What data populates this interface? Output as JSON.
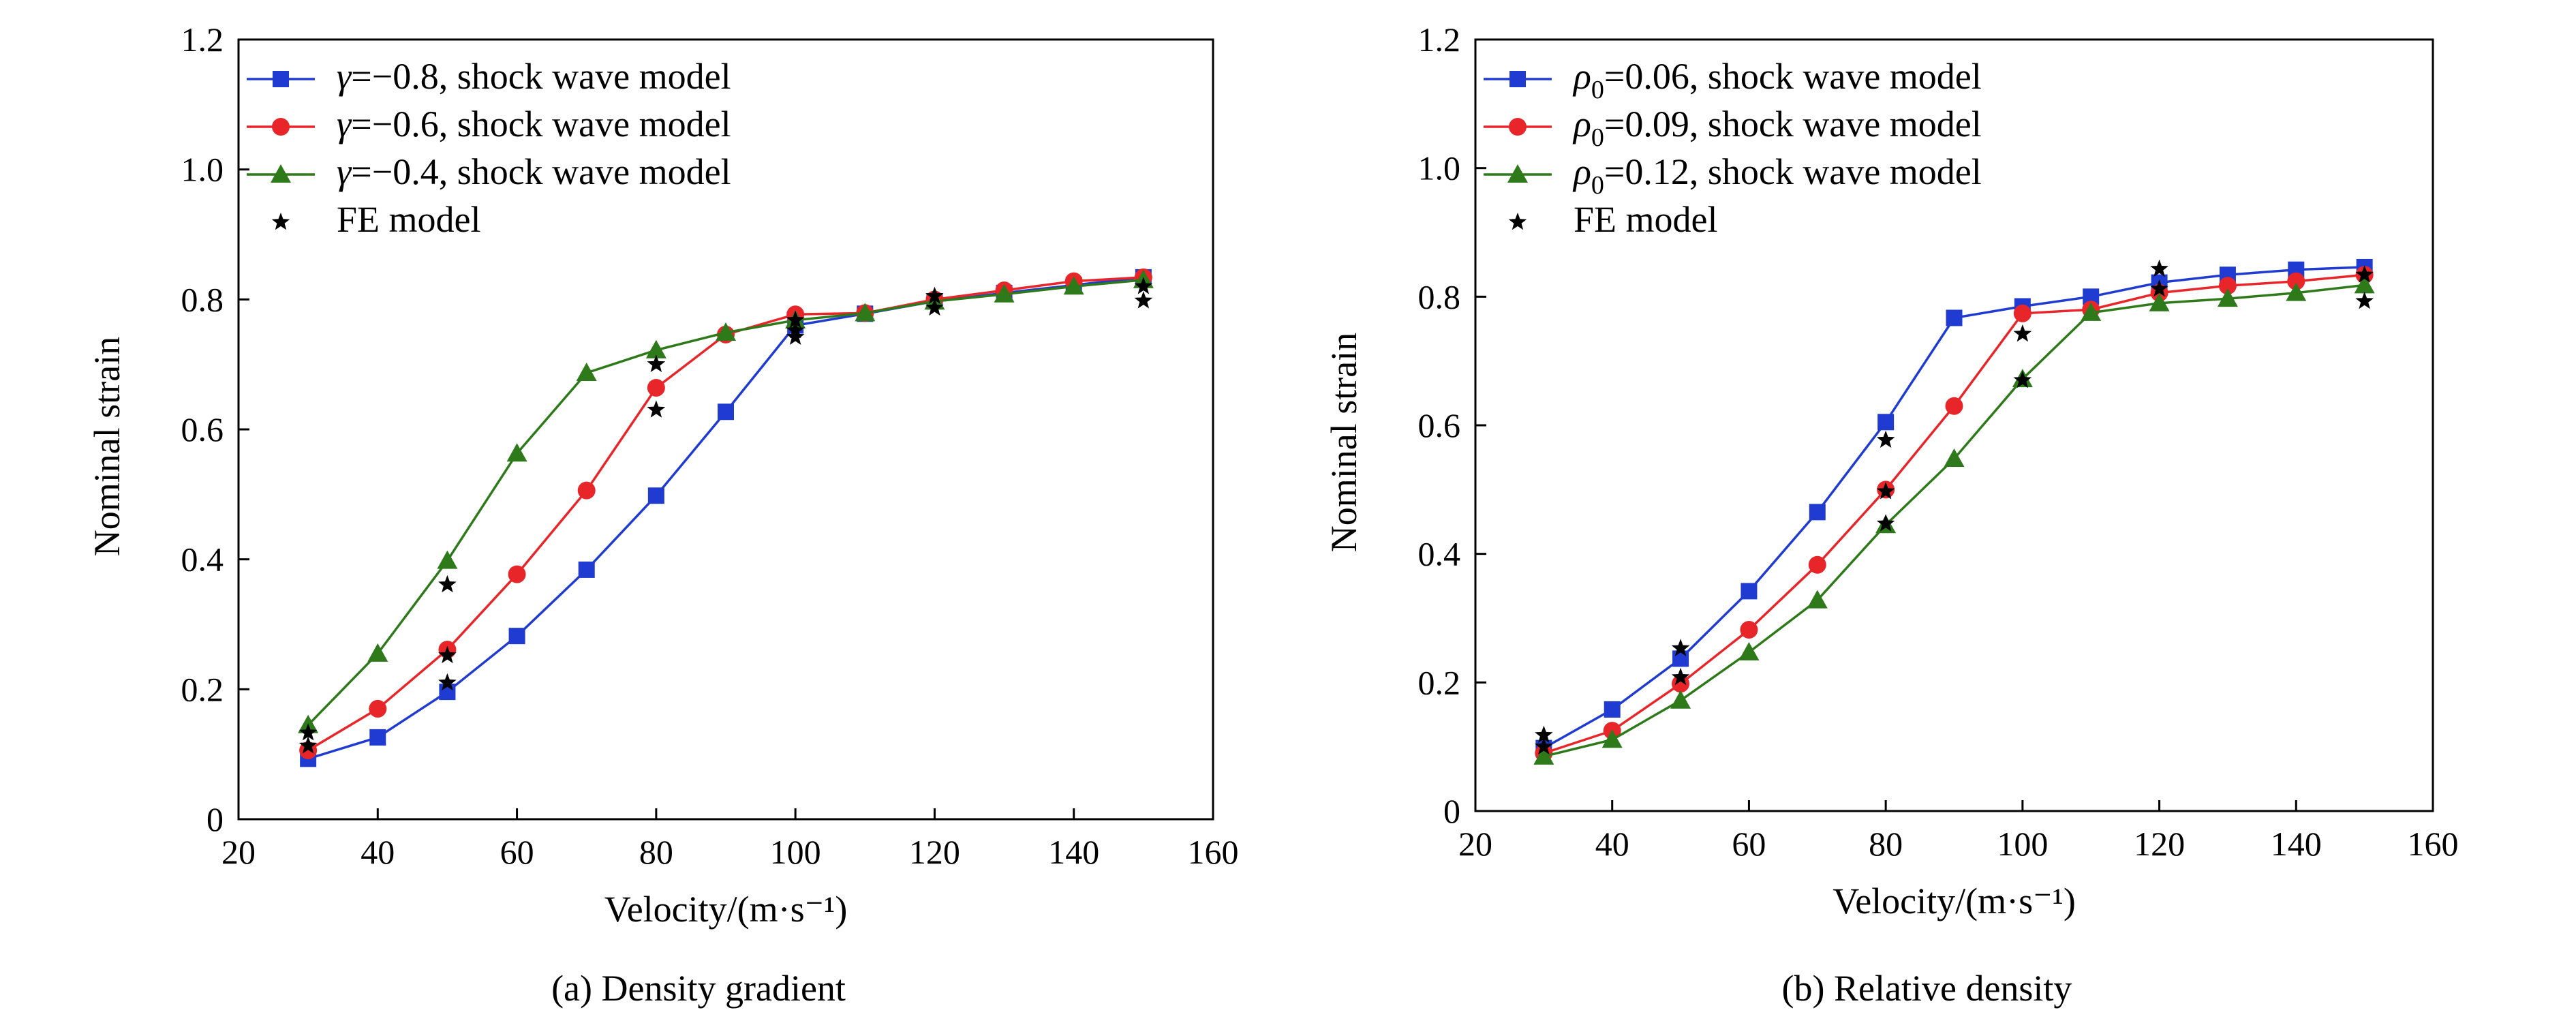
{
  "figure": {
    "colors": {
      "blue": "#1f3bd1",
      "red": "#e8262a",
      "green": "#2e7a1a",
      "star": "#000000"
    }
  },
  "chart_data": [
    {
      "type": "line",
      "caption": "(a) Density gradient",
      "xlabel": "Velocity/(m·s⁻¹)",
      "ylabel": "Nominal strain",
      "xlim": [
        20,
        160
      ],
      "ylim": [
        0,
        1.2
      ],
      "xticks": [
        "20",
        "40",
        "60",
        "80",
        "100",
        "120",
        "140",
        "160"
      ],
      "yticks": [
        "0",
        "0.2",
        "0.4",
        "0.6",
        "0.8",
        "1.0",
        "1.2"
      ],
      "grid": false,
      "legend_position": "top-left",
      "series": [
        {
          "symbol": "γ",
          "subscript": "",
          "eq": "=−0.8",
          "suffix": ", shock wave model",
          "color": "blue",
          "marker": "square",
          "x": [
            30,
            40,
            50,
            60,
            70,
            80,
            90,
            100,
            110,
            120,
            130,
            140,
            150
          ],
          "y": [
            0.093,
            0.126,
            0.196,
            0.282,
            0.384,
            0.498,
            0.627,
            0.76,
            0.778,
            0.797,
            0.81,
            0.822,
            0.834
          ]
        },
        {
          "symbol": "γ",
          "subscript": "",
          "eq": "=−0.6",
          "suffix": ", shock wave model",
          "color": "red",
          "marker": "circle",
          "x": [
            30,
            40,
            50,
            60,
            70,
            80,
            90,
            100,
            110,
            120,
            130,
            140,
            150
          ],
          "y": [
            0.106,
            0.17,
            0.261,
            0.377,
            0.506,
            0.664,
            0.746,
            0.777,
            0.779,
            0.8,
            0.814,
            0.828,
            0.834
          ]
        },
        {
          "symbol": "γ",
          "subscript": "",
          "eq": "=−0.4",
          "suffix": ", shock wave model",
          "color": "green",
          "marker": "triangle",
          "x": [
            30,
            40,
            50,
            60,
            70,
            80,
            90,
            100,
            110,
            120,
            130,
            140,
            150
          ],
          "y": [
            0.145,
            0.255,
            0.398,
            0.563,
            0.687,
            0.722,
            0.749,
            0.768,
            0.779,
            0.797,
            0.808,
            0.82,
            0.83
          ]
        },
        {
          "symbol": "",
          "subscript": "",
          "eq": "",
          "suffix": "FE model",
          "color": "star",
          "marker": "star",
          "x": [
            30,
            30,
            50,
            50,
            50,
            80,
            80,
            100,
            100,
            100,
            120,
            120,
            150,
            150
          ],
          "y": [
            0.113,
            0.133,
            0.361,
            0.252,
            0.21,
            0.7,
            0.63,
            0.742,
            0.752,
            0.768,
            0.787,
            0.805,
            0.798,
            0.82
          ]
        }
      ]
    },
    {
      "type": "line",
      "caption": "(b) Relative density",
      "xlabel": "Velocity/(m·s⁻¹)",
      "ylabel": "Nominal strain",
      "xlim": [
        20,
        160
      ],
      "ylim": [
        0,
        1.2
      ],
      "xticks": [
        "20",
        "40",
        "60",
        "80",
        "100",
        "120",
        "140",
        "160"
      ],
      "yticks": [
        "0",
        "0.2",
        "0.4",
        "0.6",
        "0.8",
        "1.0",
        "1.2"
      ],
      "grid": false,
      "legend_position": "top-left",
      "series": [
        {
          "symbol": "ρ",
          "subscript": "0",
          "eq": "=0.06",
          "suffix": ", shock wave model",
          "color": "blue",
          "marker": "square",
          "x": [
            30,
            40,
            50,
            60,
            70,
            80,
            90,
            100,
            110,
            120,
            130,
            140,
            150
          ],
          "y": [
            0.098,
            0.158,
            0.237,
            0.342,
            0.465,
            0.605,
            0.767,
            0.785,
            0.8,
            0.822,
            0.834,
            0.842,
            0.846
          ]
        },
        {
          "symbol": "ρ",
          "subscript": "0",
          "eq": "=0.09",
          "suffix": ", shock wave model",
          "color": "red",
          "marker": "circle",
          "x": [
            30,
            40,
            50,
            60,
            70,
            80,
            90,
            100,
            110,
            120,
            130,
            140,
            150
          ],
          "y": [
            0.09,
            0.125,
            0.198,
            0.282,
            0.383,
            0.5,
            0.63,
            0.774,
            0.78,
            0.806,
            0.817,
            0.824,
            0.834
          ]
        },
        {
          "symbol": "ρ",
          "subscript": "0",
          "eq": "=0.12",
          "suffix": ", shock wave model",
          "color": "green",
          "marker": "triangle",
          "x": [
            30,
            40,
            50,
            60,
            70,
            80,
            90,
            100,
            110,
            120,
            130,
            140,
            150
          ],
          "y": [
            0.085,
            0.111,
            0.172,
            0.247,
            0.328,
            0.445,
            0.548,
            0.672,
            0.775,
            0.79,
            0.797,
            0.806,
            0.818
          ]
        },
        {
          "symbol": "",
          "subscript": "",
          "eq": "",
          "suffix": "FE model",
          "color": "star",
          "marker": "star",
          "x": [
            30,
            30,
            50,
            50,
            80,
            80,
            80,
            100,
            100,
            120,
            120,
            150,
            150
          ],
          "y": [
            0.1,
            0.118,
            0.253,
            0.208,
            0.577,
            0.497,
            0.447,
            0.67,
            0.742,
            0.843,
            0.812,
            0.793,
            0.834
          ]
        }
      ]
    }
  ]
}
